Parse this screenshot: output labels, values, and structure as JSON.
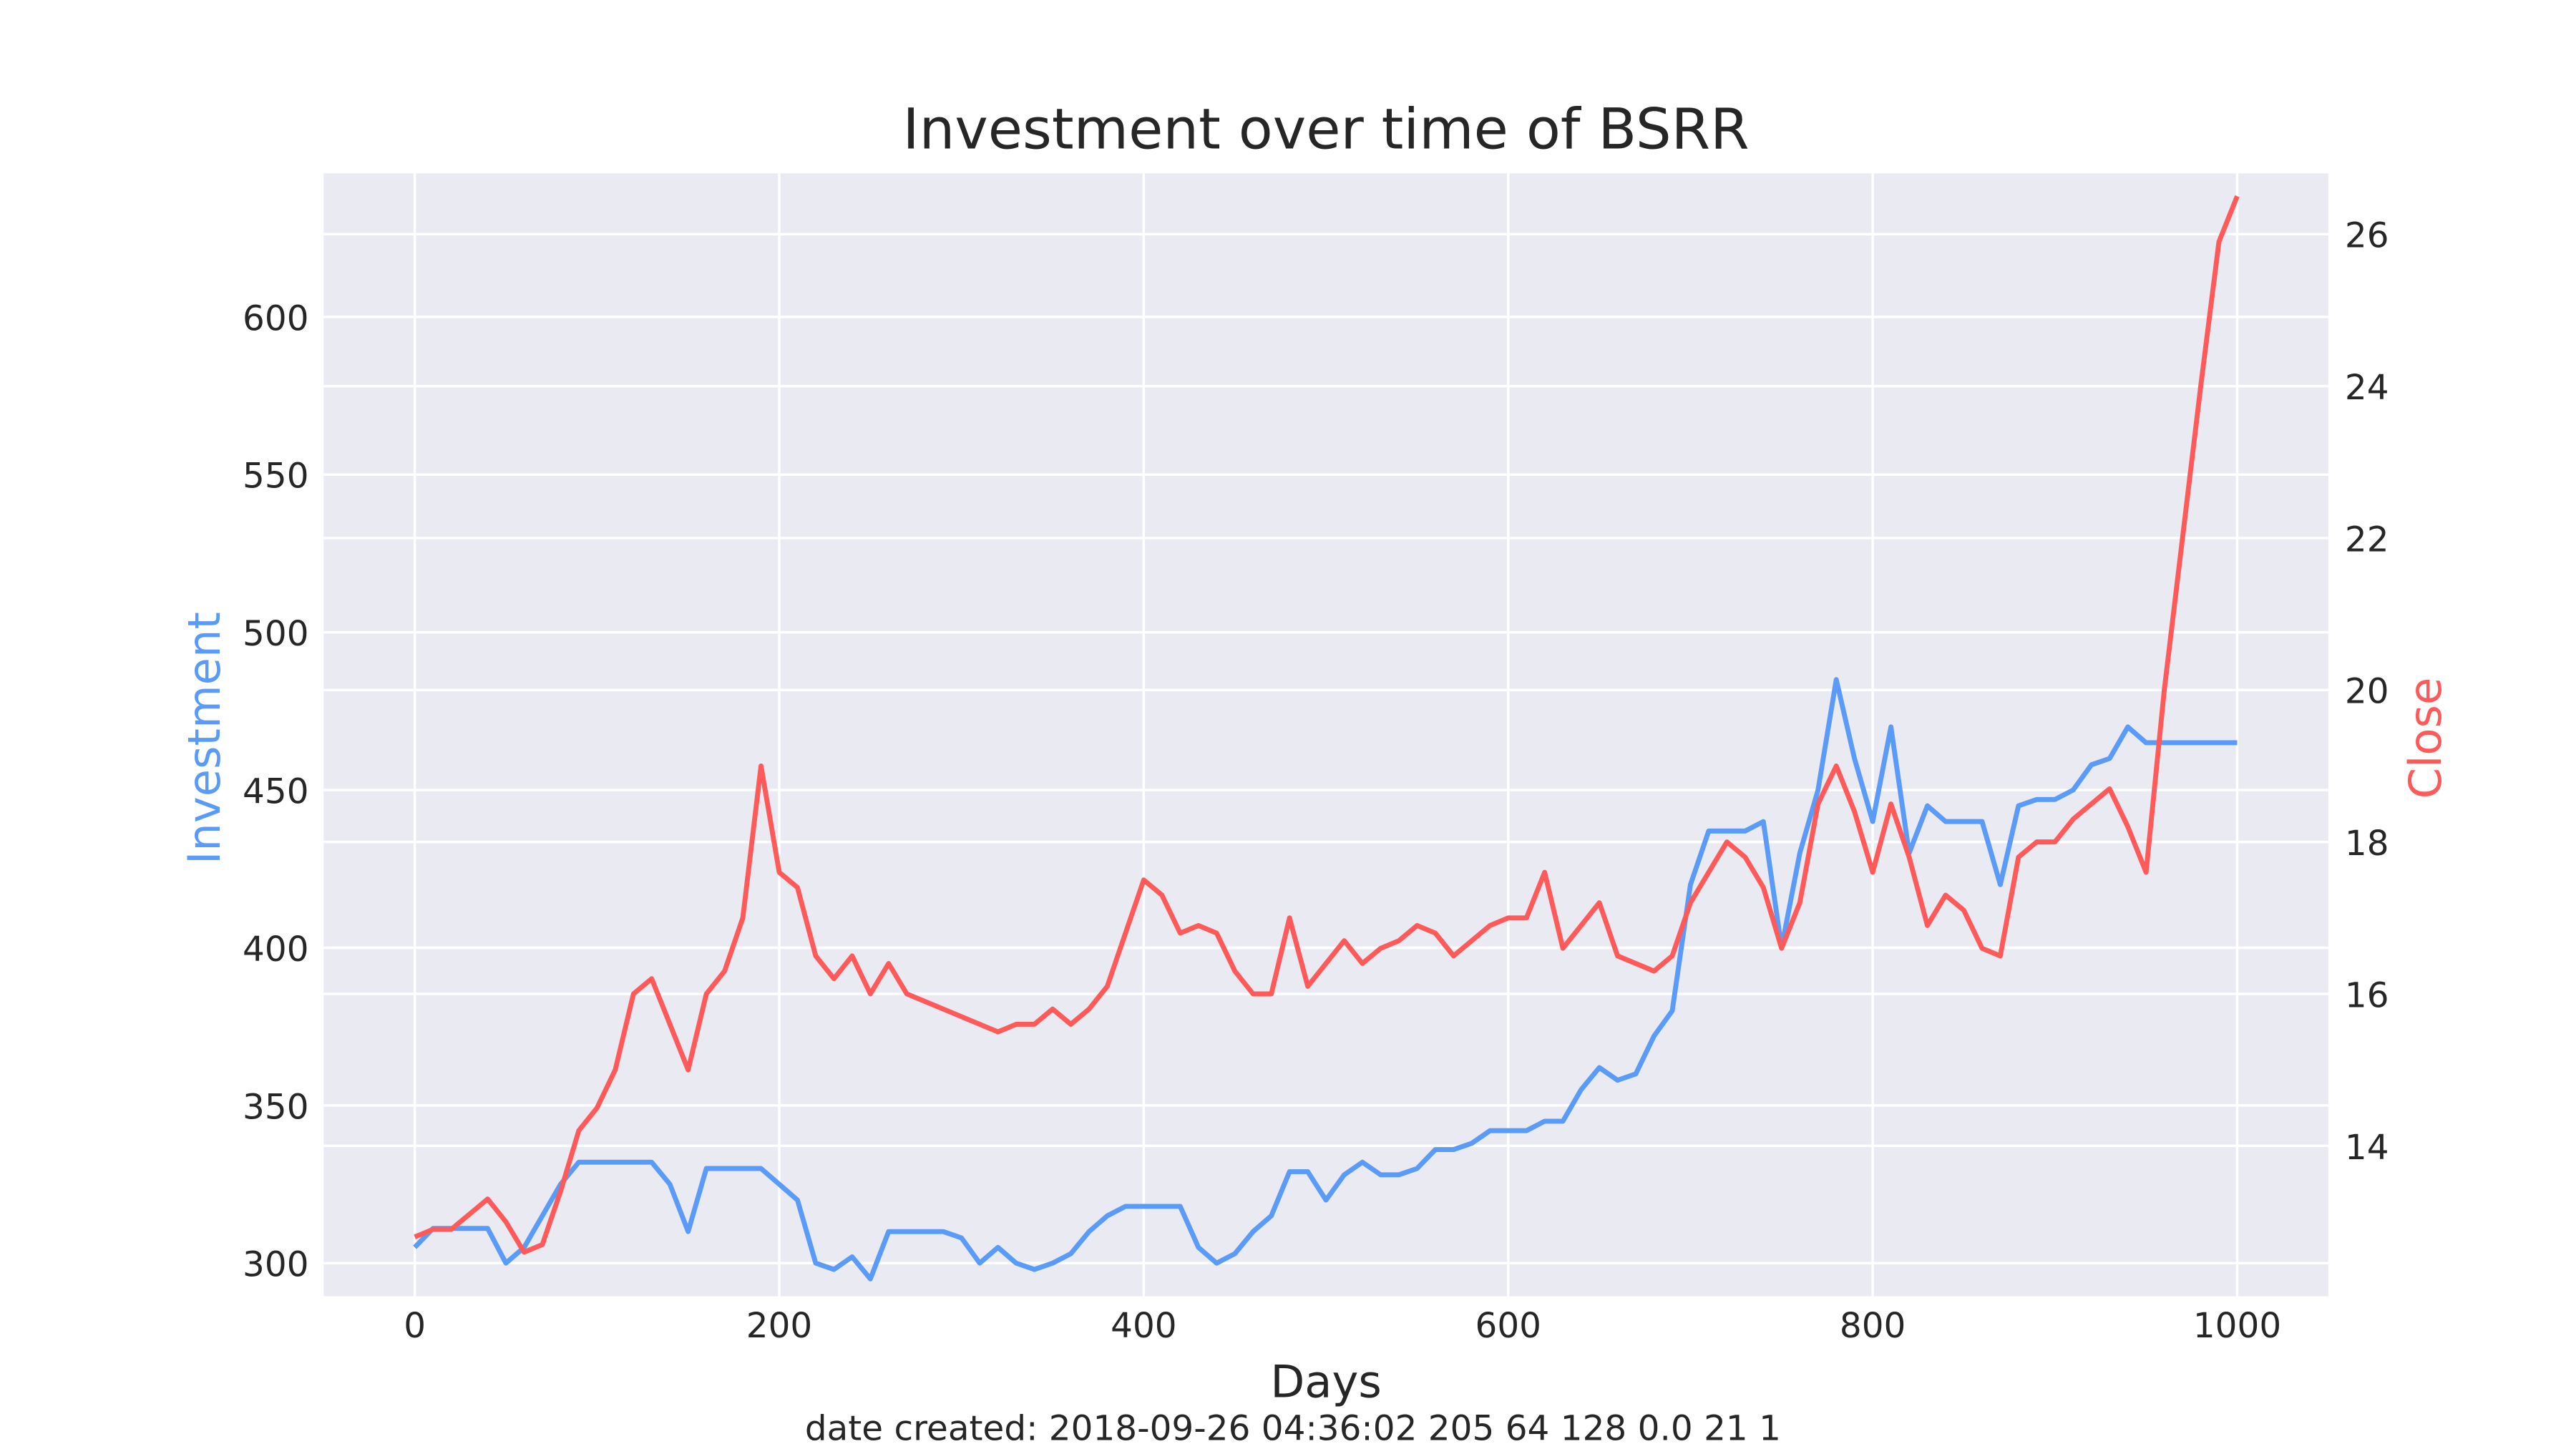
{
  "chart_data": {
    "type": "line",
    "title": "Investment over time of BSRR",
    "xlabel": "Days",
    "footer": "date created: 2018-09-26 04:36:02 205 64 128 0.0 21 1",
    "x": [
      0,
      10,
      20,
      30,
      40,
      50,
      60,
      70,
      80,
      90,
      100,
      110,
      120,
      130,
      140,
      150,
      160,
      170,
      180,
      190,
      200,
      210,
      220,
      230,
      240,
      250,
      260,
      270,
      280,
      290,
      300,
      310,
      320,
      330,
      340,
      350,
      360,
      370,
      380,
      390,
      400,
      410,
      420,
      430,
      440,
      450,
      460,
      470,
      480,
      490,
      500,
      510,
      520,
      530,
      540,
      550,
      560,
      570,
      580,
      590,
      600,
      610,
      620,
      630,
      640,
      650,
      660,
      670,
      680,
      690,
      700,
      710,
      720,
      730,
      740,
      750,
      760,
      770,
      780,
      790,
      800,
      810,
      820,
      830,
      840,
      850,
      860,
      870,
      880,
      890,
      900,
      910,
      920,
      930,
      940,
      950,
      960,
      970,
      980,
      990,
      1000
    ],
    "series": [
      {
        "name": "Investment",
        "color": "#5b9bf8",
        "axis": "y",
        "values": [
          305,
          311,
          311,
          311,
          311,
          300,
          305,
          315,
          325,
          332,
          332,
          332,
          332,
          332,
          325,
          310,
          330,
          330,
          330,
          330,
          325,
          320,
          300,
          298,
          302,
          295,
          310,
          310,
          310,
          310,
          308,
          300,
          305,
          300,
          298,
          300,
          303,
          310,
          315,
          318,
          318,
          318,
          318,
          305,
          300,
          303,
          310,
          315,
          329,
          329,
          320,
          328,
          332,
          328,
          328,
          330,
          336,
          336,
          338,
          342,
          342,
          342,
          345,
          345,
          355,
          362,
          358,
          360,
          372,
          380,
          420,
          437,
          437,
          437,
          440,
          400,
          430,
          450,
          485,
          460,
          440,
          470,
          430,
          445,
          440,
          440,
          440,
          420,
          445,
          447,
          447,
          450,
          458,
          460,
          470,
          465,
          465,
          465,
          465,
          465,
          465
        ]
      },
      {
        "name": "Close",
        "color": "#ff5a5a",
        "axis": "y2",
        "values": [
          12.8,
          12.9,
          12.9,
          13.1,
          13.3,
          13.0,
          12.6,
          12.7,
          13.4,
          14.2,
          14.5,
          15.0,
          16.0,
          16.2,
          15.6,
          15.0,
          16.0,
          16.3,
          17.0,
          19.0,
          17.6,
          17.4,
          16.5,
          16.2,
          16.5,
          16.0,
          16.4,
          16.0,
          15.9,
          15.8,
          15.7,
          15.6,
          15.5,
          15.6,
          15.6,
          15.8,
          15.6,
          15.8,
          16.1,
          16.8,
          17.5,
          17.3,
          16.8,
          16.9,
          16.8,
          16.3,
          16.0,
          16.0,
          17.0,
          16.1,
          16.4,
          16.7,
          16.4,
          16.6,
          16.7,
          16.9,
          16.8,
          16.5,
          16.7,
          16.9,
          17.0,
          17.0,
          17.6,
          16.6,
          16.9,
          17.2,
          16.5,
          16.4,
          16.3,
          16.5,
          17.2,
          17.6,
          18.0,
          17.8,
          17.4,
          16.6,
          17.2,
          18.5,
          19.0,
          18.4,
          17.6,
          18.5,
          17.8,
          16.9,
          17.3,
          17.1,
          16.6,
          16.5,
          17.8,
          18.0,
          18.0,
          18.3,
          18.5,
          18.7,
          18.2,
          17.6,
          20.0,
          22.0,
          24.0,
          25.9,
          26.5
        ]
      }
    ],
    "xlim": [
      -50,
      1050
    ],
    "xticks": [
      0,
      200,
      400,
      600,
      800,
      1000
    ],
    "ylim": [
      289.5,
      645.5
    ],
    "yticks": [
      300,
      350,
      400,
      450,
      500,
      550,
      600
    ],
    "y2lim": [
      12.02,
      26.8
    ],
    "y2ticks": [
      14,
      16,
      18,
      20,
      22,
      24,
      26
    ],
    "grid": true,
    "background": "#eaeaf2"
  }
}
